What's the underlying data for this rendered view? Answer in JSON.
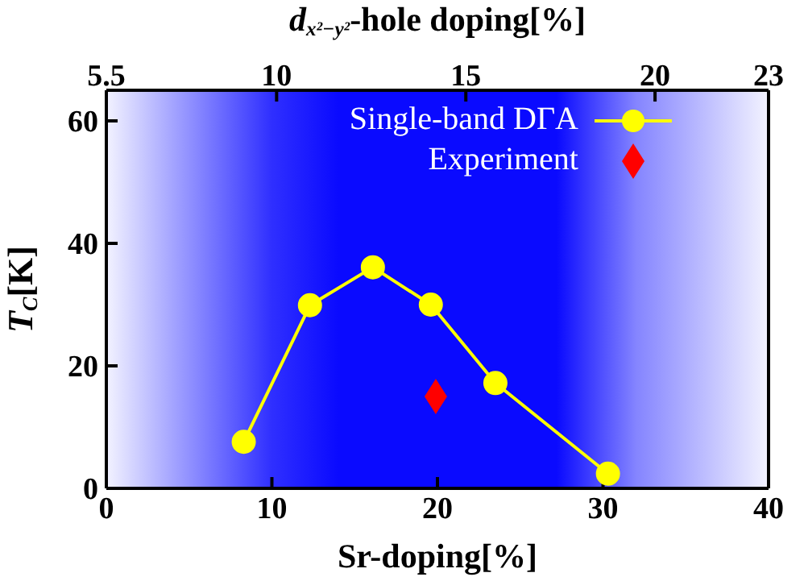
{
  "chart_data": {
    "type": "line",
    "xlabel": "Sr-doping[%]",
    "ylabel": "T$_{C}$[K]",
    "x2label": "d$_{x²−y²}$-hole doping[%]",
    "xlim": [
      0,
      40
    ],
    "xticks": [
      0,
      10,
      20,
      30,
      40
    ],
    "ylim": [
      0,
      65
    ],
    "yticks": [
      0,
      20,
      40,
      60
    ],
    "x2lim": [
      5.5,
      23
    ],
    "x2ticks": [
      5.5,
      10,
      15,
      20,
      23
    ],
    "bands": [
      {
        "axis": "x",
        "from": 0,
        "to": 40,
        "color": "#0a0aff"
      }
    ],
    "legend": "top right",
    "grid": false,
    "series": [
      {
        "name": "Single-band DΓA",
        "color": "#ffff00",
        "marker": "circle",
        "line_style": "solid",
        "x": [
          8.3,
          12.3,
          16.1,
          19.6,
          23.5,
          30.3
        ],
        "values": [
          7.6,
          29.9,
          36.1,
          30,
          17.2,
          2.4
        ]
      },
      {
        "name": "Experiment",
        "type": "scatter",
        "color": "#ff0000",
        "marker": "diamond",
        "x": [
          19.9
        ],
        "values": [
          15
        ]
      }
    ]
  }
}
